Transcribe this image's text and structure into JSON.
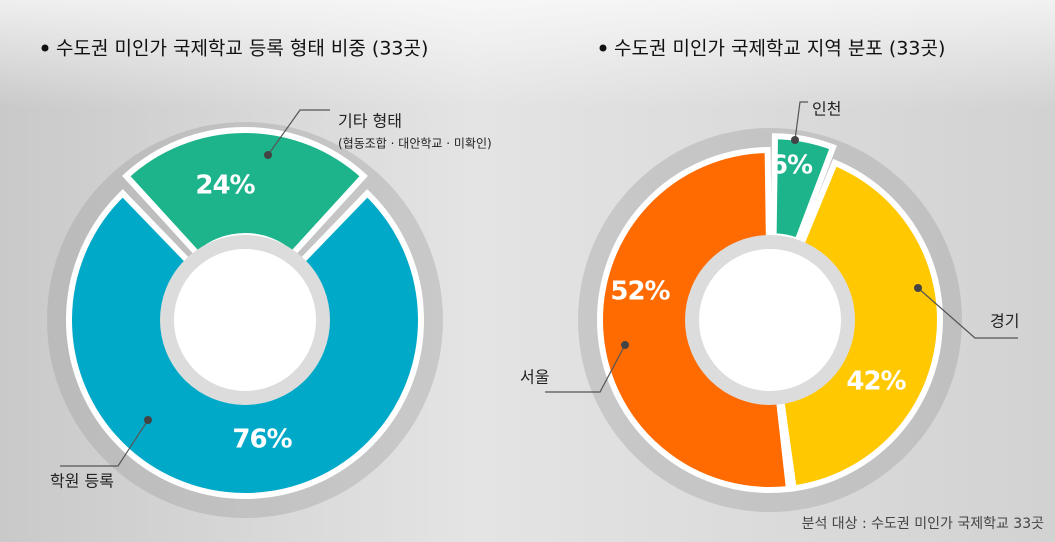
{
  "chart_data": [
    {
      "type": "pie",
      "title": "수도권 미인가 국제학교 등록 형태 비중 (33곳)",
      "categories": [
        "기타 형태",
        "학원 등록"
      ],
      "annotation": "(협동조합 · 대안학교 · 미확인)",
      "values": [
        24,
        76
      ],
      "value_labels": [
        "24%",
        "76%"
      ],
      "colors": [
        "#1db48b",
        "#00a9c7"
      ]
    },
    {
      "type": "pie",
      "title": "수도권 미인가 국제학교 지역 분포 (33곳)",
      "categories": [
        "인천",
        "경기",
        "서울"
      ],
      "values": [
        6,
        42,
        52
      ],
      "value_labels": [
        "6%",
        "42%",
        "52%"
      ],
      "colors": [
        "#1db48b",
        "#ffc800",
        "#ff6b00"
      ]
    }
  ],
  "source": "분석 대상 : 수도권 미인가 국제학교 33곳"
}
